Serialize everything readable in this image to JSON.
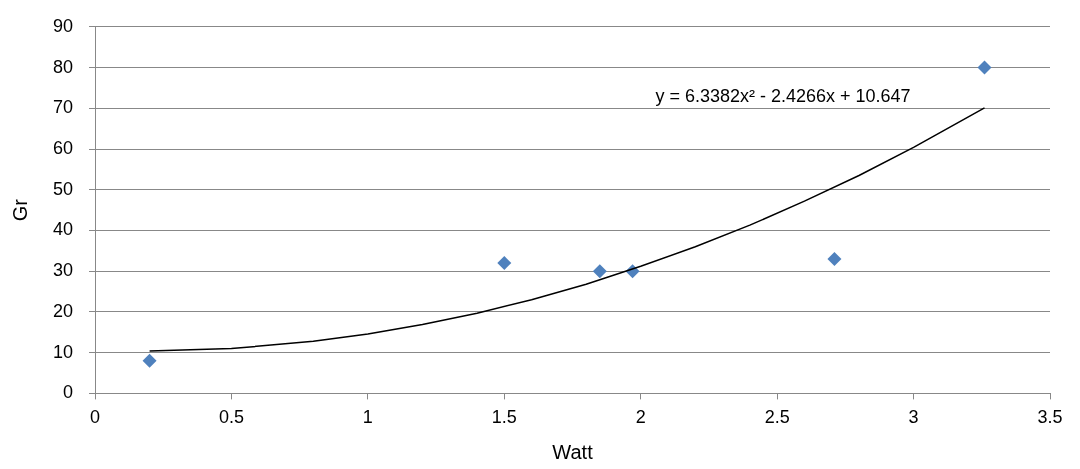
{
  "chart_data": {
    "type": "scatter",
    "xlabel": "Watt",
    "ylabel": "Gr",
    "xlim": [
      0,
      3.5
    ],
    "xticks": [
      0,
      0.5,
      1,
      1.5,
      2,
      2.5,
      3,
      3.5
    ],
    "ylim": [
      0,
      90
    ],
    "yticks": [
      0,
      10,
      20,
      30,
      40,
      50,
      60,
      70,
      80,
      90
    ],
    "grid": "y",
    "legend": false,
    "marker": "diamond",
    "series": [
      {
        "type": "scatter",
        "color": "#4f81bd",
        "x": [
          0.2,
          1.5,
          1.85,
          1.97,
          2.71,
          3.26
        ],
        "values": [
          8,
          32,
          30,
          30,
          33,
          80
        ]
      },
      {
        "type": "line",
        "color": "#000000",
        "marker": "none",
        "x": [
          0.2,
          0.5,
          0.8,
          1.0,
          1.2,
          1.4,
          1.6,
          1.8,
          2.0,
          2.2,
          2.4,
          2.6,
          2.8,
          3.0,
          3.26
        ],
        "values": [
          10.4,
          11.0,
          12.8,
          14.6,
          16.9,
          19.7,
          23.0,
          26.8,
          31.2,
          36.0,
          41.3,
          47.2,
          53.5,
          60.4,
          70.1
        ]
      }
    ],
    "annotations": [
      "y = 6.3382x² - 2.4266x + 10.647"
    ]
  }
}
